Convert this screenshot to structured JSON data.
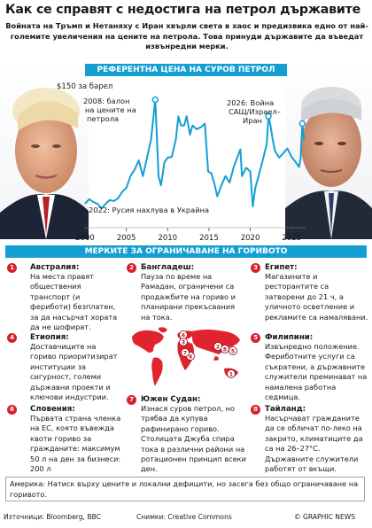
{
  "header": {
    "title": "Как се справят с недостига на петрол държавите",
    "subtitle": "Войната на Тръмп и Нетаняху с Иран хвърли света в хаос и предизвика едно от най-големите увеличения на цените на петрола. Това принуди държавите да въведат извънредни мерки."
  },
  "chart_bar_label": "РЕФЕРЕНТНА ЦЕНА НА СУРОВ ПЕТРОЛ BRENT",
  "chart_data": {
    "type": "line",
    "title": "РЕФЕРЕНТНА ЦЕНА НА СУРОВ ПЕТРОЛ BRENT",
    "ylabel": "$150 за барел",
    "x_ticks": [
      "2000",
      "2005",
      "2010",
      "2015",
      "2020",
      "2025"
    ],
    "xlim": [
      2000,
      2026.8
    ],
    "ylim": [
      0,
      150
    ],
    "series": [
      {
        "x": [
          2000.0,
          2000.5,
          2001.0,
          2001.5,
          2002.0,
          2002.5,
          2003.0,
          2003.5,
          2004.0,
          2004.5,
          2005.0,
          2005.5,
          2006.0,
          2006.5,
          2007.0,
          2007.5,
          2008.0,
          2008.5,
          2008.9,
          2009.2,
          2009.6,
          2010.0,
          2010.5,
          2011.0,
          2011.3,
          2011.6,
          2012.0,
          2012.3,
          2012.7,
          2013.0,
          2013.5,
          2014.0,
          2014.5,
          2014.9,
          2015.3,
          2015.7,
          2016.0,
          2016.5,
          2017.0,
          2017.5,
          2018.0,
          2018.8,
          2019.0,
          2019.5,
          2020.0,
          2020.3,
          2020.6,
          2021.0,
          2021.5,
          2022.0,
          2022.2,
          2022.45,
          2022.7,
          2023.0,
          2023.5,
          2024.0,
          2024.5,
          2025.0,
          2025.5,
          2025.9,
          2026.1,
          2026.3,
          2026.5
        ],
        "y": [
          25,
          30,
          27,
          25,
          20,
          25,
          29,
          28,
          31,
          38,
          42,
          55,
          62,
          72,
          55,
          75,
          95,
          138,
          55,
          45,
          70,
          75,
          76,
          95,
          120,
          110,
          110,
          120,
          100,
          110,
          106,
          108,
          112,
          60,
          58,
          45,
          33,
          45,
          55,
          48,
          65,
          84,
          55,
          64,
          60,
          22,
          42,
          55,
          72,
          90,
          120,
          110,
          95,
          82,
          75,
          80,
          85,
          76,
          70,
          65,
          75,
          112,
          95
        ]
      }
    ],
    "annotations": [
      {
        "text": "2008: балон на цените на петрола"
      },
      {
        "text": "2022: Русия нахлува в Украйна"
      },
      {
        "text": "2026: Война САЩ/Израел–Иран"
      }
    ],
    "grid": false
  },
  "measures_bar_label": "МЕРКИТЕ ЗА ОГРАНИЧАВАНЕ НА ГОРИВОТО",
  "measures": [
    {
      "n": "1",
      "title": "Австралия:",
      "text": "На места правят обществения транспорт (и фериботи) безплатен, за да насърчат хората да не шофират."
    },
    {
      "n": "2",
      "title": "Бангладеш:",
      "text": "Пауза по време на Рамадан, ограничени са продажбите на гориво и планирани прекъсвания на тока."
    },
    {
      "n": "3",
      "title": "Египет:",
      "text": "Магазините и ресторантите са затворени до 21 ч, а уличното осветление и рекламите са намалявани."
    },
    {
      "n": "4",
      "title": "Етиопия:",
      "text": "Доставчиците на гориво приоритизират институции за сигурност, големи държавни проекти и ключови индустрии."
    },
    {
      "n": "5",
      "title": "Филипини:",
      "text": "Извънредно положение. Фериботните услуги са съкратени, а държавните служители преминават на намалена работна седмица."
    },
    {
      "n": "6",
      "title": "Словения:",
      "text": "Първата страна членка на ЕС, която въвежда квоти гориво за гражданите: максимум 50 л на ден за бизнеси: 200 л"
    },
    {
      "n": "7",
      "title": "Южен Судан:",
      "text": "Изнася суров петрол, но трябва да купува рафинирано гориво. Столицата Джуба спира тока в различни райони на ротационен принцип всеки ден."
    },
    {
      "n": "8",
      "title": "Тайланд:",
      "text": "Насърчават гражданите да се обличат по-леко на закрито, климатиците да са на 26–27°C. Държавните служители работят от вкъщи."
    }
  ],
  "america_note": "Америка: Натиск върху цените и локални дефицити, но засега без общо ограничаване на горивото.",
  "footer": {
    "sources": "Източници: Bloomberg, BBC",
    "photos": "Снимки: Creative Commons",
    "brand": "© GRAPHIC NEWS"
  },
  "colors": {
    "accent_blue": "#139fd2",
    "marker_red": "#d6202c",
    "map_red": "#e0242f",
    "chart_line": "#139fd2"
  },
  "icons": [
    "trump-portrait",
    "netanyahu-portrait",
    "world-map-icon"
  ]
}
